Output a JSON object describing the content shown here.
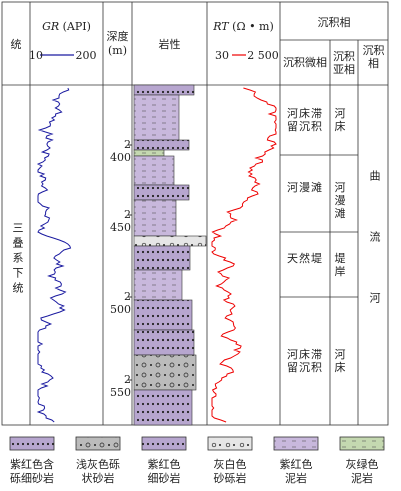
{
  "header": {
    "stratum": "统",
    "gr_title": "GR",
    "gr_unit": "(API)",
    "gr_min": "10",
    "gr_max": "200",
    "depth_title": "深度",
    "depth_unit": "(m)",
    "lithology": "岩性",
    "rt_title": "RT",
    "rt_unit": "(Ω • m)",
    "rt_min": "30",
    "rt_max": "2 500",
    "facies_group": "沉积相",
    "microfacies": "沉积微相",
    "subfacies": "沉积亚相",
    "facies": "沉积相"
  },
  "stratum": "三叠系下统",
  "depth_ticks": [
    "2 400",
    "2 450",
    "2 500",
    "2 550"
  ],
  "microfacies": [
    "河床滞留沉积",
    "河漫滩",
    "天然堤",
    "河床滞留沉积"
  ],
  "subfacies": [
    "河床",
    "河漫滩",
    "堤岸",
    "河床"
  ],
  "facies": "曲流河",
  "legend": [
    [
      "紫红色含",
      "砾细砂岩"
    ],
    [
      "浅灰色砾",
      "状砂岩"
    ],
    [
      "紫红色",
      "细砂岩"
    ],
    [
      "灰白色",
      "砂砾岩"
    ],
    [
      "紫红色",
      "泥岩"
    ],
    [
      "灰绿色",
      "泥岩"
    ]
  ]
}
